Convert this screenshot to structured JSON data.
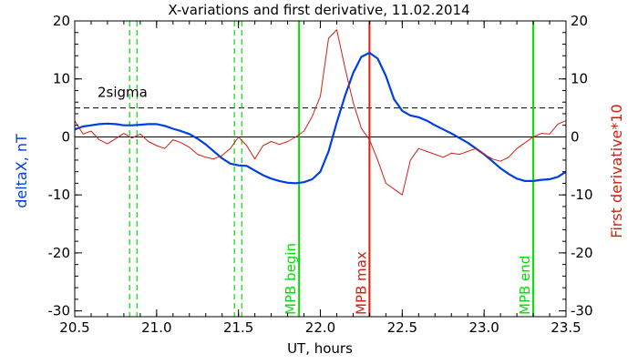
{
  "chart_data": {
    "type": "line",
    "title": "X-variations and first derivative, 11.02.2014",
    "xlabel": "UT, hours",
    "ylabel_left": "deltaX, nT",
    "ylabel_right": "First derivative*10",
    "xlim": [
      20.5,
      23.5
    ],
    "ylim": [
      -31,
      20
    ],
    "xticks": [
      "20.5",
      "21.0",
      "21.5",
      "22.0",
      "22.5",
      "23.0",
      "23.5"
    ],
    "yticks": [
      "20",
      "10",
      "0",
      "-10",
      "-20",
      "-30"
    ],
    "colors": {
      "deltaX": "#0040e0",
      "derivative": "#d02010",
      "mpb": "#00e000",
      "mpb_max": "#d02010",
      "axis": "#000000"
    },
    "series": [
      {
        "name": "deltaX, nT",
        "axis": "left",
        "x": [
          20.5,
          20.55,
          20.6,
          20.65,
          20.7,
          20.75,
          20.8,
          20.85,
          20.9,
          20.95,
          21.0,
          21.05,
          21.1,
          21.15,
          21.2,
          21.25,
          21.3,
          21.35,
          21.4,
          21.45,
          21.5,
          21.55,
          21.6,
          21.65,
          21.7,
          21.75,
          21.8,
          21.85,
          21.9,
          21.95,
          22.0,
          22.05,
          22.1,
          22.15,
          22.2,
          22.25,
          22.3,
          22.35,
          22.4,
          22.45,
          22.5,
          22.55,
          22.6,
          22.65,
          22.7,
          22.75,
          22.8,
          22.85,
          22.9,
          22.95,
          23.0,
          23.05,
          23.1,
          23.15,
          23.2,
          23.25,
          23.3,
          23.35,
          23.4,
          23.45,
          23.5
        ],
        "y": [
          1.3,
          1.8,
          2.0,
          2.2,
          2.3,
          2.2,
          2.0,
          2.0,
          2.1,
          2.2,
          2.2,
          1.9,
          1.4,
          1.0,
          0.5,
          -0.3,
          -1.3,
          -2.5,
          -3.7,
          -4.6,
          -4.9,
          -5.0,
          -5.8,
          -6.6,
          -7.2,
          -7.6,
          -7.9,
          -8.0,
          -7.8,
          -7.3,
          -6.0,
          -2.5,
          2.5,
          7.0,
          11.0,
          13.8,
          14.5,
          13.5,
          10.5,
          6.5,
          4.5,
          3.7,
          3.4,
          2.8,
          2.0,
          1.3,
          0.6,
          -0.2,
          -1.0,
          -2.0,
          -3.0,
          -4.2,
          -5.4,
          -6.4,
          -7.2,
          -7.6,
          -7.6,
          -7.4,
          -7.3,
          -6.9,
          -6.0
        ]
      },
      {
        "name": "First derivative*10",
        "axis": "right",
        "x": [
          20.5,
          20.55,
          20.6,
          20.65,
          20.7,
          20.75,
          20.8,
          20.85,
          20.9,
          20.95,
          21.0,
          21.05,
          21.1,
          21.15,
          21.2,
          21.25,
          21.3,
          21.35,
          21.4,
          21.45,
          21.5,
          21.55,
          21.6,
          21.65,
          21.7,
          21.75,
          21.8,
          21.85,
          21.9,
          21.95,
          22.0,
          22.05,
          22.1,
          22.15,
          22.2,
          22.25,
          22.3,
          22.35,
          22.4,
          22.45,
          22.5,
          22.55,
          22.6,
          22.65,
          22.7,
          22.75,
          22.8,
          22.85,
          22.9,
          22.95,
          23.0,
          23.05,
          23.1,
          23.15,
          23.2,
          23.25,
          23.3,
          23.35,
          23.4,
          23.45,
          23.5
        ],
        "y": [
          2.8,
          0.5,
          1.0,
          -0.5,
          -1.2,
          -0.3,
          0.6,
          -0.2,
          0.5,
          -0.8,
          -1.5,
          -2.0,
          -0.5,
          -1.0,
          -1.8,
          -3.0,
          -3.5,
          -3.8,
          -3.2,
          -2.0,
          0.0,
          -1.5,
          -3.8,
          -1.5,
          -0.8,
          -1.3,
          -0.8,
          0.0,
          1.0,
          3.5,
          7.0,
          17.0,
          18.5,
          12.0,
          6.0,
          1.5,
          -0.5,
          -4.0,
          -8.0,
          -9.0,
          -10.0,
          -4.0,
          -2.0,
          -2.5,
          -3.0,
          -3.5,
          -2.8,
          -3.0,
          -2.5,
          -2.0,
          -3.0,
          -3.8,
          -4.2,
          -3.5,
          -2.0,
          -1.0,
          0.0,
          0.6,
          0.5,
          2.2,
          2.8
        ]
      }
    ],
    "reference_lines": [
      {
        "kind": "horizontal",
        "y": 0,
        "style": "solid",
        "color": "#000000"
      },
      {
        "kind": "horizontal",
        "y": 5,
        "style": "dashed",
        "color": "#000000",
        "label": "2sigma"
      }
    ],
    "vertical_markers": [
      {
        "x": 21.87,
        "label": "MPB begin",
        "color": "#00e000",
        "style": "solid"
      },
      {
        "x": 22.3,
        "label": "MPB max",
        "color": "#d02010",
        "style": "solid"
      },
      {
        "x": 23.3,
        "label": "MPB end",
        "color": "#00e000",
        "style": "solid"
      },
      {
        "x": 20.835,
        "color": "#00e000",
        "style": "dashed"
      },
      {
        "x": 20.88,
        "color": "#00e000",
        "style": "dashed"
      },
      {
        "x": 21.475,
        "color": "#00e000",
        "style": "dashed"
      },
      {
        "x": 21.52,
        "color": "#00e000",
        "style": "dashed"
      }
    ],
    "grid": false,
    "legend": "none"
  }
}
